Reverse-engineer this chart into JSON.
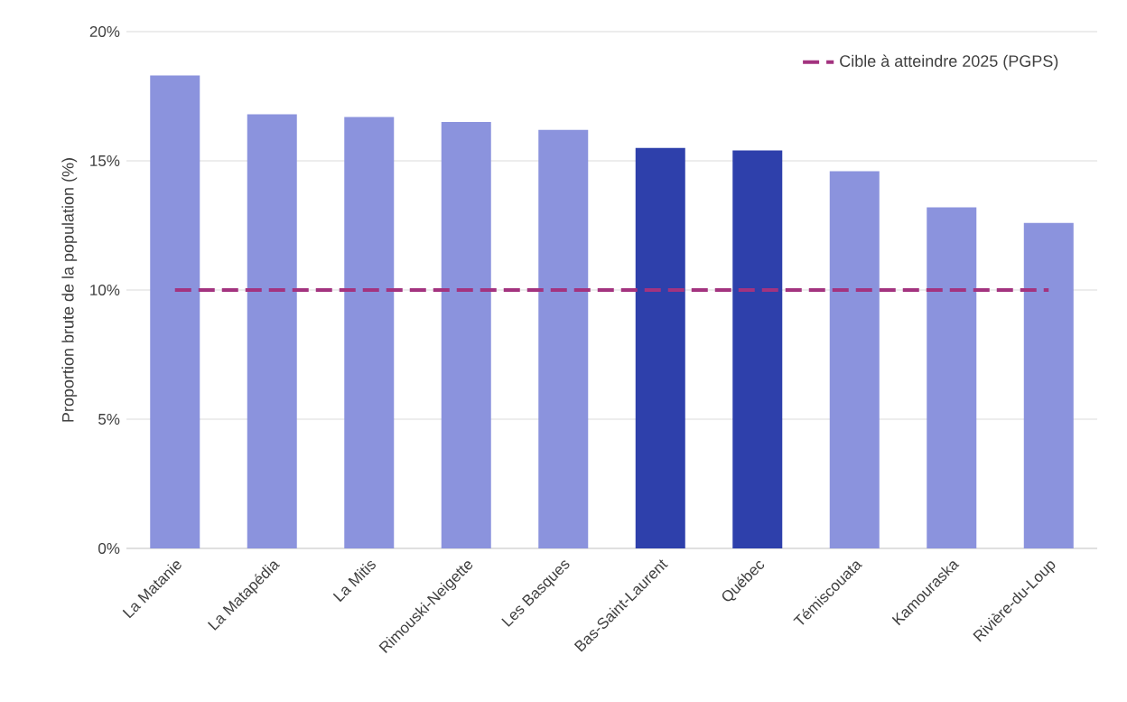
{
  "chart_data": {
    "type": "bar",
    "ylabel": "Proportion brute de la population (%)",
    "categories": [
      "La Matanie",
      "La Matapédia",
      "La Mitis",
      "Rimouski-Neigette",
      "Les Basques",
      "Bas-Saint-Laurent",
      "Québec",
      "Témiscouata",
      "Kamouraska",
      "Rivière-du-Loup"
    ],
    "values": [
      18.3,
      16.8,
      16.7,
      16.5,
      16.2,
      15.5,
      15.4,
      14.6,
      13.2,
      12.6
    ],
    "colors": [
      "#8b93dd",
      "#8b93dd",
      "#8b93dd",
      "#8b93dd",
      "#8b93dd",
      "#2e40ab",
      "#2e40ab",
      "#8b93dd",
      "#8b93dd",
      "#8b93dd"
    ],
    "ylim": [
      0,
      20
    ],
    "yticks": [
      {
        "value": 0,
        "label": "0%"
      },
      {
        "value": 5,
        "label": "5%"
      },
      {
        "value": 10,
        "label": "10%"
      },
      {
        "value": 15,
        "label": "15%"
      },
      {
        "value": 20,
        "label": "20%"
      }
    ],
    "grid": "y",
    "legend": "top right",
    "ref_lines": [
      {
        "axis": "y",
        "value": 10,
        "label": "Cible à atteindre 2025 (PGPS)",
        "color": "#a3337f",
        "line_style": "dashed"
      }
    ]
  }
}
